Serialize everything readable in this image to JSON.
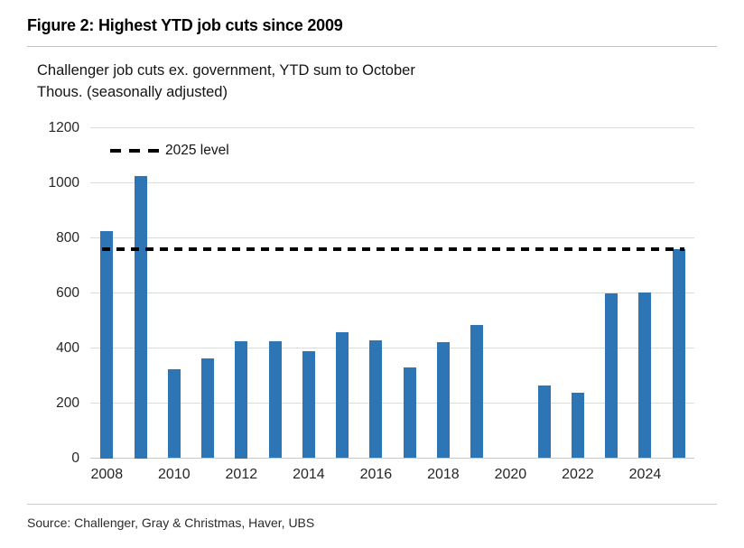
{
  "header": {
    "title": "Figure 2: Highest YTD job cuts since 2009",
    "subtitle_line1": "Challenger job cuts ex. government, YTD sum to October",
    "subtitle_line2": "Thous. (seasonally adjusted)"
  },
  "legend": {
    "label": "2025 level"
  },
  "footer": {
    "source": "Source: Challenger, Gray & Christmas, Haver, UBS"
  },
  "colors": {
    "bar": "#2E75B6",
    "dashed_line": "#000000",
    "gridline": "#DBDBDB",
    "axis_line": "#C9C9C9"
  },
  "chart_data": {
    "type": "bar",
    "title": "Challenger job cuts ex. government, YTD sum to October",
    "ylabel": "Thous. (seasonally adjusted)",
    "categories": [
      "2008",
      "2009",
      "2010",
      "2011",
      "2012",
      "2013",
      "2014",
      "2015",
      "2016",
      "2017",
      "2018",
      "2019",
      "2020",
      "2021",
      "2022",
      "2023",
      "2024",
      "2025"
    ],
    "values": [
      825,
      1025,
      322,
      363,
      425,
      423,
      387,
      458,
      428,
      330,
      422,
      483,
      null,
      263,
      238,
      598,
      602,
      760
    ],
    "ylim": [
      0,
      1200
    ],
    "yticks": [
      0,
      200,
      400,
      600,
      800,
      1000,
      1200
    ],
    "xtick_labels": [
      "2008",
      "2010",
      "2012",
      "2014",
      "2016",
      "2018",
      "2020",
      "2022",
      "2024"
    ],
    "reference_line": {
      "label": "2025 level",
      "value": 760,
      "style": "dashed"
    },
    "grid": true,
    "legend_position": "inside-top-left"
  }
}
